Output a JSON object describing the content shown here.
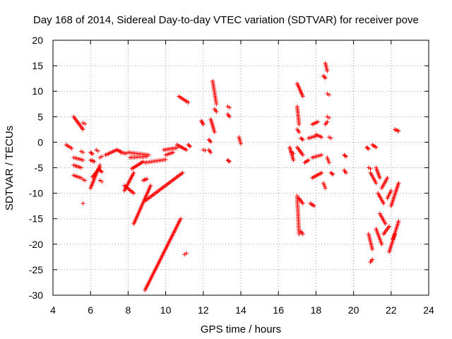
{
  "chart_data": {
    "type": "scatter",
    "title": "Day 168 of 2014, Sidereal Day-to-day VTEC variation (SDTVAR) for receiver pove",
    "xlabel": "GPS time / hours",
    "ylabel": "SDTVAR / TECUs",
    "xlim": [
      4,
      24
    ],
    "ylim": [
      -30,
      20
    ],
    "xticks": [
      4,
      6,
      8,
      10,
      12,
      14,
      16,
      18,
      20,
      22,
      24
    ],
    "yticks": [
      -30,
      -25,
      -20,
      -15,
      -10,
      -5,
      0,
      5,
      10,
      15,
      20
    ],
    "marker": "plus",
    "color": "#ff0000",
    "grid": true,
    "segments": [
      {
        "x": [
          4.7,
          5.0
        ],
        "y": [
          -0.5,
          -1.2
        ]
      },
      {
        "x": [
          5.1,
          5.6
        ],
        "y": [
          5.0,
          2.5
        ]
      },
      {
        "x": [
          5.6,
          5.7
        ],
        "y": [
          3.8,
          3.6
        ]
      },
      {
        "x": [
          5.1,
          5.6
        ],
        "y": [
          -3.0,
          -3.5
        ]
      },
      {
        "x": [
          5.1,
          5.5
        ],
        "y": [
          -4.5,
          -5.0
        ]
      },
      {
        "x": [
          5.1,
          5.5
        ],
        "y": [
          -6.5,
          -7.0
        ]
      },
      {
        "x": [
          5.5,
          5.6
        ],
        "y": [
          -1.8,
          -2.0
        ]
      },
      {
        "x": [
          5.6,
          5.6
        ],
        "y": [
          -12.0,
          -12.0
        ]
      },
      {
        "x": [
          5.6,
          5.7
        ],
        "y": [
          -7.3,
          -7.5
        ]
      },
      {
        "x": [
          6.0,
          6.1
        ],
        "y": [
          -2.0,
          -2.3
        ]
      },
      {
        "x": [
          6.0,
          6.2
        ],
        "y": [
          -3.5,
          -3.8
        ]
      },
      {
        "x": [
          6.0,
          6.5
        ],
        "y": [
          -9.0,
          -4.5
        ]
      },
      {
        "x": [
          6.1,
          6.5
        ],
        "y": [
          -6.8,
          -5.0
        ]
      },
      {
        "x": [
          6.3,
          6.4
        ],
        "y": [
          -1.5,
          -1.7
        ]
      },
      {
        "x": [
          6.5,
          6.6
        ],
        "y": [
          -3.0,
          -2.8
        ]
      },
      {
        "x": [
          6.5,
          6.6
        ],
        "y": [
          -5.5,
          -5.8
        ]
      },
      {
        "x": [
          6.5,
          6.6
        ],
        "y": [
          -7.5,
          -7.7
        ]
      },
      {
        "x": [
          6.8,
          7.4
        ],
        "y": [
          -2.5,
          -1.5
        ]
      },
      {
        "x": [
          7.4,
          7.6
        ],
        "y": [
          -1.5,
          -1.8
        ]
      },
      {
        "x": [
          7.6,
          7.9
        ],
        "y": [
          -2.0,
          -2.2
        ]
      },
      {
        "x": [
          7.8,
          8.3
        ],
        "y": [
          -9.5,
          -6.0
        ]
      },
      {
        "x": [
          7.8,
          8.3
        ],
        "y": [
          -8.5,
          -10.0
        ]
      },
      {
        "x": [
          8.0,
          9.1
        ],
        "y": [
          -2.0,
          -2.5
        ]
      },
      {
        "x": [
          8.1,
          9.0
        ],
        "y": [
          -3.0,
          -2.8
        ]
      },
      {
        "x": [
          8.2,
          8.8
        ],
        "y": [
          -5.2,
          -3.8
        ]
      },
      {
        "x": [
          8.3,
          9.2
        ],
        "y": [
          -16.0,
          -8.5
        ]
      },
      {
        "x": [
          8.8,
          9.0
        ],
        "y": [
          -7.5,
          -7.2
        ]
      },
      {
        "x": [
          8.9,
          10.0
        ],
        "y": [
          -4.0,
          -3.4
        ]
      },
      {
        "x": [
          8.9,
          10.8
        ],
        "y": [
          -29.0,
          -15.0
        ]
      },
      {
        "x": [
          8.9,
          10.9
        ],
        "y": [
          -11.5,
          -6.0
        ]
      },
      {
        "x": [
          9.9,
          10.6
        ],
        "y": [
          -1.5,
          -1.1
        ]
      },
      {
        "x": [
          10.0,
          10.4
        ],
        "y": [
          -2.5,
          -2.0
        ]
      },
      {
        "x": [
          10.6,
          11.1
        ],
        "y": [
          -0.5,
          -1.5
        ]
      },
      {
        "x": [
          10.7,
          11.2
        ],
        "y": [
          9.0,
          7.8
        ]
      },
      {
        "x": [
          11.0,
          11.1
        ],
        "y": [
          -22.0,
          -21.8
        ]
      },
      {
        "x": [
          11.2,
          11.3
        ],
        "y": [
          -0.5,
          -0.8
        ]
      },
      {
        "x": [
          11.9,
          12.0
        ],
        "y": [
          4.2,
          3.5
        ]
      },
      {
        "x": [
          12.0,
          12.1
        ],
        "y": [
          -1.5,
          -1.6
        ]
      },
      {
        "x": [
          12.3,
          12.4
        ],
        "y": [
          0.5,
          0.1
        ]
      },
      {
        "x": [
          12.3,
          12.4
        ],
        "y": [
          -1.5,
          -2.0
        ]
      },
      {
        "x": [
          12.4,
          12.6
        ],
        "y": [
          4.5,
          2.0
        ]
      },
      {
        "x": [
          12.5,
          12.7
        ],
        "y": [
          12.0,
          7.5
        ]
      },
      {
        "x": [
          12.6,
          12.7
        ],
        "y": [
          6.5,
          6.0
        ]
      },
      {
        "x": [
          13.3,
          13.4
        ],
        "y": [
          7.0,
          6.8
        ]
      },
      {
        "x": [
          13.3,
          13.4
        ],
        "y": [
          5.5,
          5.0
        ]
      },
      {
        "x": [
          13.3,
          13.4
        ],
        "y": [
          -3.5,
          -3.8
        ]
      },
      {
        "x": [
          13.9,
          14.0
        ],
        "y": [
          1.0,
          -0.3
        ]
      },
      {
        "x": [
          16.6,
          16.8
        ],
        "y": [
          -1.0,
          -3.5
        ]
      },
      {
        "x": [
          16.7,
          16.8
        ],
        "y": [
          -2.0,
          -2.2
        ]
      },
      {
        "x": [
          17.0,
          17.3
        ],
        "y": [
          11.5,
          9.0
        ]
      },
      {
        "x": [
          17.0,
          17.1
        ],
        "y": [
          7.0,
          3.5
        ]
      },
      {
        "x": [
          17.0,
          17.1
        ],
        "y": [
          2.5,
          2.0
        ]
      },
      {
        "x": [
          17.0,
          17.3
        ],
        "y": [
          -1.0,
          -2.5
        ]
      },
      {
        "x": [
          17.0,
          17.1
        ],
        "y": [
          -10.5,
          -18.0
        ]
      },
      {
        "x": [
          17.2,
          17.3
        ],
        "y": [
          0.8,
          0.5
        ]
      },
      {
        "x": [
          17.1,
          17.3
        ],
        "y": [
          -11.0,
          -12.0
        ]
      },
      {
        "x": [
          17.2,
          17.3
        ],
        "y": [
          -17.5,
          -18.0
        ]
      },
      {
        "x": [
          17.4,
          17.6
        ],
        "y": [
          -4.0,
          -3.5
        ]
      },
      {
        "x": [
          17.6,
          18.0
        ],
        "y": [
          0.8,
          1.2
        ]
      },
      {
        "x": [
          17.7,
          17.9
        ],
        "y": [
          -12.0,
          -12.5
        ]
      },
      {
        "x": [
          17.8,
          18.1
        ],
        "y": [
          3.5,
          4.0
        ]
      },
      {
        "x": [
          17.8,
          18.3
        ],
        "y": [
          -7.0,
          -6.0
        ]
      },
      {
        "x": [
          17.8,
          18.3
        ],
        "y": [
          -3.0,
          -2.5
        ]
      },
      {
        "x": [
          18.0,
          18.3
        ],
        "y": [
          1.5,
          1.0
        ]
      },
      {
        "x": [
          18.4,
          18.5
        ],
        "y": [
          13.0,
          12.6
        ]
      },
      {
        "x": [
          18.4,
          18.5
        ],
        "y": [
          -8.0,
          -9.0
        ]
      },
      {
        "x": [
          18.5,
          18.6
        ],
        "y": [
          15.5,
          14.0
        ]
      },
      {
        "x": [
          18.5,
          18.6
        ],
        "y": [
          3.5,
          4.0
        ]
      },
      {
        "x": [
          18.6,
          18.7
        ],
        "y": [
          5.0,
          4.8
        ]
      },
      {
        "x": [
          18.6,
          18.7
        ],
        "y": [
          9.5,
          9.3
        ]
      },
      {
        "x": [
          18.6,
          18.7
        ],
        "y": [
          -3.0,
          -4.0
        ]
      },
      {
        "x": [
          18.7,
          18.8
        ],
        "y": [
          1.0,
          0.8
        ]
      },
      {
        "x": [
          18.8,
          18.9
        ],
        "y": [
          -6.0,
          -6.3
        ]
      },
      {
        "x": [
          19.5,
          19.6
        ],
        "y": [
          -2.5,
          -2.8
        ]
      },
      {
        "x": [
          19.5,
          19.6
        ],
        "y": [
          -5.5,
          -6.0
        ]
      },
      {
        "x": [
          20.7,
          20.8
        ],
        "y": [
          -1.0,
          -1.3
        ]
      },
      {
        "x": [
          20.8,
          20.9
        ],
        "y": [
          -5.0,
          -5.2
        ]
      },
      {
        "x": [
          20.8,
          21.0
        ],
        "y": [
          -18.0,
          -21.0
        ]
      },
      {
        "x": [
          20.9,
          21.0
        ],
        "y": [
          -23.5,
          -23.0
        ]
      },
      {
        "x": [
          20.9,
          21.2
        ],
        "y": [
          -6.0,
          -8.0
        ]
      },
      {
        "x": [
          21.0,
          21.2
        ],
        "y": [
          -0.5,
          -1.0
        ]
      },
      {
        "x": [
          21.2,
          21.4
        ],
        "y": [
          -5.0,
          -7.0
        ]
      },
      {
        "x": [
          21.2,
          21.5
        ],
        "y": [
          -17.0,
          -20.0
        ]
      },
      {
        "x": [
          21.3,
          21.6
        ],
        "y": [
          -10.0,
          -12.0
        ]
      },
      {
        "x": [
          21.4,
          21.7
        ],
        "y": [
          -14.0,
          -16.0
        ]
      },
      {
        "x": [
          21.5,
          21.8
        ],
        "y": [
          -9.0,
          -7.0
        ]
      },
      {
        "x": [
          21.6,
          21.9
        ],
        "y": [
          -18.0,
          -16.5
        ]
      },
      {
        "x": [
          21.8,
          22.0
        ],
        "y": [
          -11.0,
          -9.5
        ]
      },
      {
        "x": [
          21.9,
          22.2
        ],
        "y": [
          -21.5,
          -18.0
        ]
      },
      {
        "x": [
          22.0,
          22.4
        ],
        "y": [
          -12.5,
          -8.0
        ]
      },
      {
        "x": [
          22.1,
          22.4
        ],
        "y": [
          -19.0,
          -15.5
        ]
      },
      {
        "x": [
          22.2,
          22.4
        ],
        "y": [
          2.5,
          2.2
        ]
      }
    ]
  }
}
